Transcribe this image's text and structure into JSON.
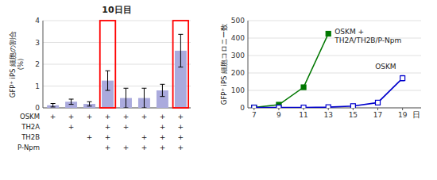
{
  "chart_data": [
    {
      "type": "bar",
      "title": "10日目",
      "ylabel": "GFP⁺ iPS 細胞の割合\n(%)",
      "categories": [
        null,
        null,
        null,
        null,
        null,
        null,
        null,
        null
      ],
      "values": [
        0.12,
        0.28,
        0.18,
        1.25,
        0.45,
        0.45,
        0.8,
        2.62
      ],
      "errors": [
        0.08,
        0.12,
        0.1,
        0.45,
        0.45,
        0.45,
        0.28,
        0.75
      ],
      "color": "#aaaadd",
      "ylim": [
        0,
        4
      ],
      "yticks": [
        0,
        1,
        2,
        3,
        4
      ],
      "grid": true,
      "highlight": [
        3,
        7
      ],
      "highlight_color": "red",
      "table": [
        {
          "name": "OSKM",
          "cells": [
            "+",
            "+",
            "+",
            "+",
            "+",
            "+",
            "+",
            "+"
          ]
        },
        {
          "name": "TH2A",
          "cells": [
            null,
            "+",
            null,
            "+",
            "+",
            null,
            "+",
            "+"
          ]
        },
        {
          "name": "TH2B",
          "cells": [
            null,
            null,
            "+",
            "+",
            null,
            "+",
            "+",
            "+"
          ]
        },
        {
          "name": "P-Npm",
          "cells": [
            null,
            null,
            null,
            "+",
            "+",
            "+",
            "+",
            "+"
          ]
        }
      ]
    },
    {
      "type": "line",
      "ylabel": "GFP⁺ iPS 細胞コロニー数",
      "xlabel": "日",
      "x": [
        7,
        9,
        11,
        13,
        15,
        17,
        19
      ],
      "series": [
        {
          "name": "OSKM +\nTH2A/TH2B/P-Npm",
          "color": "#007700",
          "marker": "square",
          "values": [
            2,
            18,
            118,
            425,
            null,
            null,
            null
          ],
          "errors": [
            1,
            2,
            5,
            12,
            null,
            null,
            null
          ]
        },
        {
          "name": "OSKM",
          "color": "#0000cc",
          "marker": "square-open",
          "values": [
            2,
            2,
            2,
            4,
            10,
            30,
            170
          ],
          "errors": [
            0.5,
            0.5,
            0.5,
            1,
            3,
            8,
            15
          ]
        }
      ],
      "xlim": [
        6.5,
        20.5
      ],
      "xticks": [
        7,
        9,
        11,
        13,
        15,
        17,
        19
      ],
      "ylim": [
        0,
        500
      ],
      "yticks": [
        0,
        100,
        200,
        300,
        400,
        500
      ],
      "grid": true
    }
  ]
}
